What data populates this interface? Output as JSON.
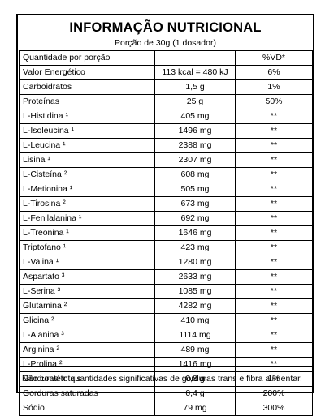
{
  "title": "INFORMAÇÃO NUTRICIONAL",
  "subtitle": "Porção de 30g (1 dosador)",
  "rows": [
    {
      "name": "Quantidade por porção",
      "amount": "",
      "vd": "%VD*"
    },
    {
      "name": "Valor Energético",
      "amount": "113 kcal = 480 kJ",
      "vd": "6%"
    },
    {
      "name": "Carboidratos",
      "amount": "1,5 g",
      "vd": "1%"
    },
    {
      "name": "Proteínas",
      "amount": "25 g",
      "vd": "50%"
    },
    {
      "name": "L-Histidina ¹",
      "amount": "405 mg",
      "vd": "**"
    },
    {
      "name": "L-Isoleucina ¹",
      "amount": "1496 mg",
      "vd": "**"
    },
    {
      "name": "L-Leucina ¹",
      "amount": "2388 mg",
      "vd": "**"
    },
    {
      "name": "Lisina ¹",
      "amount": "2307 mg",
      "vd": "**"
    },
    {
      "name": "L-Cisteína ²",
      "amount": "608 mg",
      "vd": "**"
    },
    {
      "name": "L-Metionina ¹",
      "amount": "505 mg",
      "vd": "**"
    },
    {
      "name": "L-Tirosina ²",
      "amount": "673 mg",
      "vd": "**"
    },
    {
      "name": "L-Fenilalanina ¹",
      "amount": "692 mg",
      "vd": "**"
    },
    {
      "name": "L-Treonina ¹",
      "amount": "1646 mg",
      "vd": "**"
    },
    {
      "name": "Triptofano ¹",
      "amount": "423 mg",
      "vd": "**"
    },
    {
      "name": "L-Valina ¹",
      "amount": "1280 mg",
      "vd": "**"
    },
    {
      "name": "Aspartato ³",
      "amount": "2633 mg",
      "vd": "**"
    },
    {
      "name": "L-Serina ³",
      "amount": "1085 mg",
      "vd": "**"
    },
    {
      "name": "Glutamina ²",
      "amount": "4282 mg",
      "vd": "**"
    },
    {
      "name": "Glicina ²",
      "amount": "410 mg",
      "vd": "**"
    },
    {
      "name": "L-Alanina ³",
      "amount": "1114 mg",
      "vd": "**"
    },
    {
      "name": "Arginina ²",
      "amount": "489 mg",
      "vd": "**"
    },
    {
      "name": "L-Prolina ²",
      "amount": "1416 mg",
      "vd": "**"
    },
    {
      "name": "Gorduras totais",
      "amount": "0,8 g",
      "vd": "1%"
    },
    {
      "name": "Gorduras saturadas",
      "amount": "0,4 g",
      "vd": "200%"
    },
    {
      "name": "Sódio",
      "amount": "79 mg",
      "vd": "300%"
    }
  ],
  "footnote": "Não contém quantidades significativas de gorduras trans e fibra alimentar."
}
